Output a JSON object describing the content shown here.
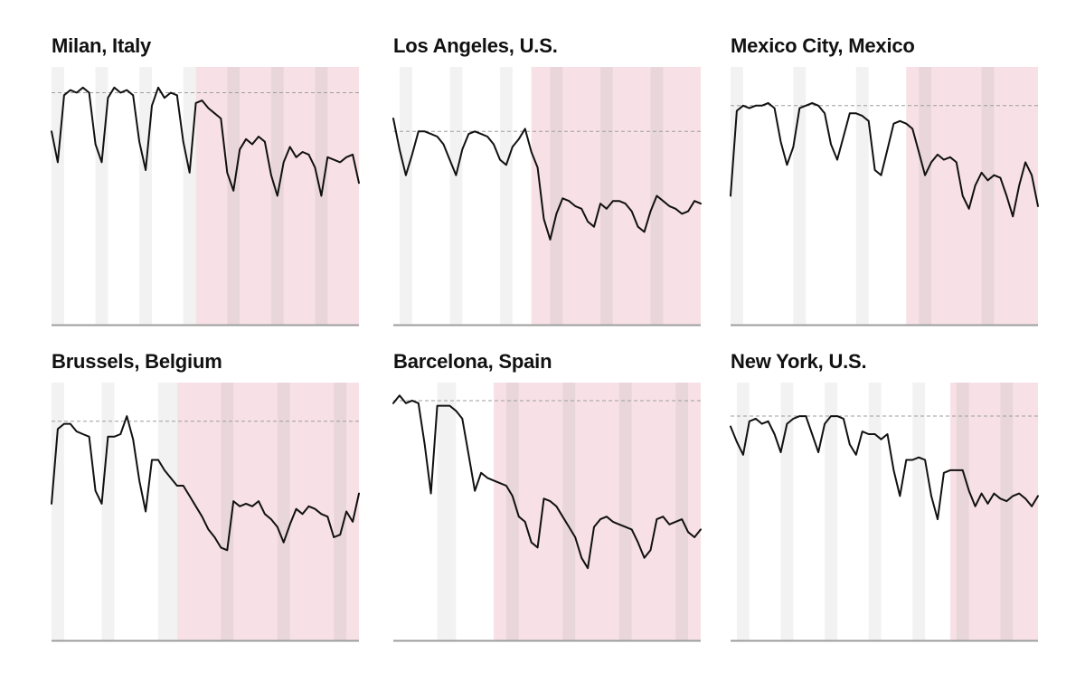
{
  "colors": {
    "weekend_band": "#f2f2f2",
    "lockdown_band": "#f7e1e6",
    "overlap_band": "#e9d6db",
    "baseline_dash": "#9e9e9e",
    "axis": "#9e9e9e",
    "line": "#111111"
  },
  "chart_data": [
    {
      "type": "line",
      "title": "Milan, Italy",
      "ylim": [
        0,
        100
      ],
      "baseline": 90,
      "x_count": 50,
      "lockdown_range": [
        23,
        49
      ],
      "weekend_bands": [
        [
          0,
          2
        ],
        [
          7,
          9
        ],
        [
          14,
          16
        ],
        [
          21,
          23
        ],
        [
          28,
          30
        ],
        [
          35,
          37
        ],
        [
          42,
          44
        ]
      ],
      "values": [
        75,
        63,
        89,
        91,
        90,
        92,
        90,
        70,
        63,
        88,
        92,
        90,
        91,
        89,
        71,
        60,
        85,
        92,
        88,
        90,
        89,
        71,
        59,
        86,
        87,
        84,
        82,
        80,
        59,
        52,
        68,
        72,
        70,
        73,
        71,
        58,
        50,
        63,
        69,
        65,
        67,
        66,
        61,
        50,
        65,
        64,
        63,
        65,
        66,
        55
      ]
    },
    {
      "type": "line",
      "title": "Los Angeles, U.S.",
      "ylim": [
        0,
        100
      ],
      "baseline": 75,
      "x_count": 50,
      "lockdown_range": [
        22,
        49
      ],
      "weekend_bands": [
        [
          1,
          3
        ],
        [
          9,
          11
        ],
        [
          17,
          19
        ],
        [
          25,
          27
        ],
        [
          33,
          35
        ],
        [
          41,
          43
        ]
      ],
      "values": [
        80,
        68,
        58,
        66,
        75,
        75,
        74,
        73,
        70,
        64,
        58,
        68,
        74,
        75,
        74,
        73,
        70,
        64,
        62,
        69,
        72,
        76,
        67,
        61,
        41,
        33,
        43,
        49,
        48,
        46,
        45,
        40,
        38,
        47,
        45,
        48,
        48,
        47,
        44,
        38,
        36,
        44,
        50,
        48,
        46,
        45,
        43,
        44,
        48,
        47
      ]
    },
    {
      "type": "line",
      "title": "Mexico City, Mexico",
      "ylim": [
        0,
        100
      ],
      "baseline": 85,
      "x_count": 50,
      "lockdown_range": [
        28,
        49
      ],
      "weekend_bands": [
        [
          0,
          2
        ],
        [
          10,
          12
        ],
        [
          20,
          22
        ],
        [
          30,
          32
        ],
        [
          40,
          42
        ]
      ],
      "values": [
        50,
        83,
        85,
        84,
        85,
        85,
        86,
        84,
        71,
        62,
        69,
        84,
        85,
        86,
        85,
        82,
        70,
        64,
        73,
        82,
        82,
        81,
        79,
        60,
        58,
        68,
        78,
        79,
        78,
        76,
        67,
        58,
        63,
        66,
        64,
        65,
        63,
        50,
        45,
        54,
        59,
        56,
        58,
        57,
        50,
        42,
        54,
        63,
        58,
        46
      ]
    },
    {
      "type": "line",
      "title": "Brussels, Belgium",
      "ylim": [
        0,
        100
      ],
      "baseline": 85,
      "x_count": 50,
      "lockdown_range": [
        20,
        49
      ],
      "weekend_bands": [
        [
          0,
          2
        ],
        [
          8,
          10
        ],
        [
          17,
          20
        ],
        [
          27,
          29
        ],
        [
          36,
          38
        ],
        [
          45,
          47
        ]
      ],
      "values": [
        53,
        82,
        84,
        84,
        81,
        80,
        79,
        58,
        53,
        79,
        79,
        80,
        87,
        78,
        62,
        50,
        70,
        70,
        66,
        63,
        60,
        60,
        56,
        52,
        48,
        43,
        40,
        36,
        35,
        54,
        52,
        53,
        52,
        54,
        49,
        47,
        44,
        38,
        45,
        51,
        49,
        52,
        51,
        49,
        48,
        40,
        41,
        50,
        46,
        57
      ]
    },
    {
      "type": "line",
      "title": "Barcelona, Spain",
      "ylim": [
        0,
        100
      ],
      "baseline": 93,
      "x_count": 50,
      "lockdown_range": [
        16,
        49
      ],
      "weekend_bands": [
        [
          7,
          10
        ],
        [
          18,
          20
        ],
        [
          27,
          29
        ],
        [
          36,
          38
        ],
        [
          45,
          47
        ]
      ],
      "values": [
        92,
        95,
        92,
        93,
        92,
        76,
        57,
        91,
        91,
        91,
        89,
        86,
        72,
        58,
        65,
        63,
        62,
        61,
        60,
        56,
        48,
        46,
        38,
        36,
        55,
        54,
        52,
        48,
        44,
        40,
        32,
        28,
        44,
        47,
        48,
        46,
        45,
        44,
        43,
        38,
        32,
        35,
        47,
        48,
        45,
        46,
        47,
        42,
        40,
        43
      ]
    },
    {
      "type": "line",
      "title": "New York, U.S.",
      "ylim": [
        0,
        100
      ],
      "baseline": 87,
      "x_count": 50,
      "lockdown_range": [
        35,
        49
      ],
      "weekend_bands": [
        [
          1,
          3
        ],
        [
          8,
          10
        ],
        [
          15,
          17
        ],
        [
          22,
          24
        ],
        [
          29,
          31
        ],
        [
          36,
          38
        ],
        [
          43,
          45
        ]
      ],
      "values": [
        83,
        77,
        72,
        85,
        86,
        84,
        85,
        80,
        73,
        84,
        86,
        87,
        87,
        80,
        73,
        84,
        87,
        87,
        86,
        76,
        72,
        81,
        80,
        80,
        78,
        80,
        66,
        56,
        70,
        70,
        71,
        70,
        56,
        47,
        65,
        66,
        66,
        66,
        58,
        52,
        57,
        53,
        57,
        55,
        54,
        56,
        57,
        55,
        52,
        56
      ]
    }
  ]
}
